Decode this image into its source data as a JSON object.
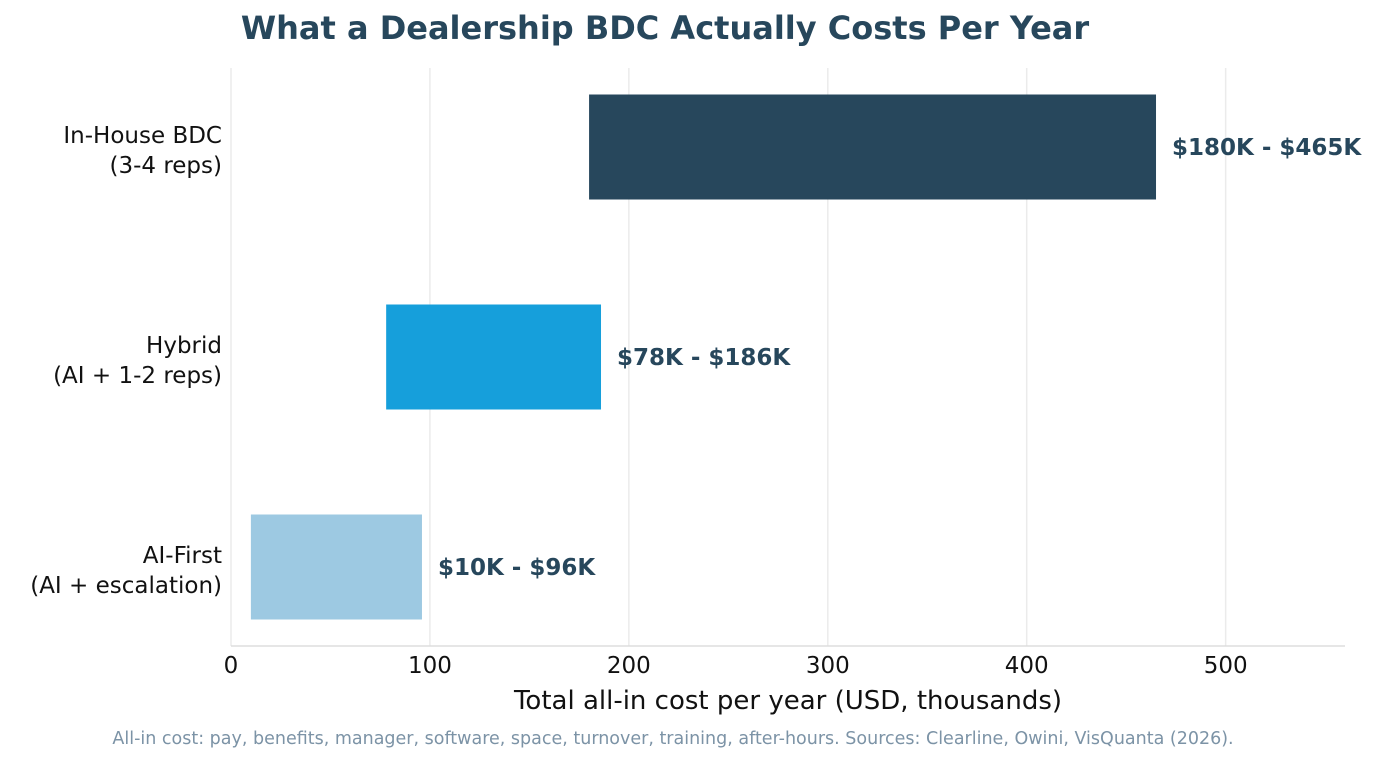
{
  "chart_data": {
    "type": "bar",
    "orientation": "horizontal",
    "variant": "floating-range",
    "title": "What a Dealership BDC Actually Costs Per Year",
    "xlabel": "Total all-in cost per year (USD, thousands)",
    "ylabel": "",
    "xlim": [
      0,
      560
    ],
    "xticks": [
      0,
      100,
      200,
      300,
      400,
      500
    ],
    "grid": "vertical",
    "categories": [
      {
        "lines": [
          "In-House BDC",
          "(3-4 reps)"
        ],
        "low": 180,
        "high": 465,
        "label": "$180K - $465K",
        "color": "#27475c"
      },
      {
        "lines": [
          "Hybrid",
          "(AI + 1-2 reps)"
        ],
        "low": 78,
        "high": 186,
        "label": "$78K - $186K",
        "color": "#169fdb"
      },
      {
        "lines": [
          "AI-First",
          "(AI + escalation)"
        ],
        "low": 10,
        "high": 96,
        "label": "$10K - $96K",
        "color": "#9dc9e2"
      }
    ],
    "source_note": "All-in cost: pay, benefits, manager, software, space, turnover, training, after-hours. Sources: Clearline, Owini, VisQuanta (2026)."
  },
  "colors": {
    "title": "#27475c",
    "label": "#27475c",
    "source": "#7c93a6",
    "grid": "#ebebeb",
    "axis": "#dddddd"
  }
}
